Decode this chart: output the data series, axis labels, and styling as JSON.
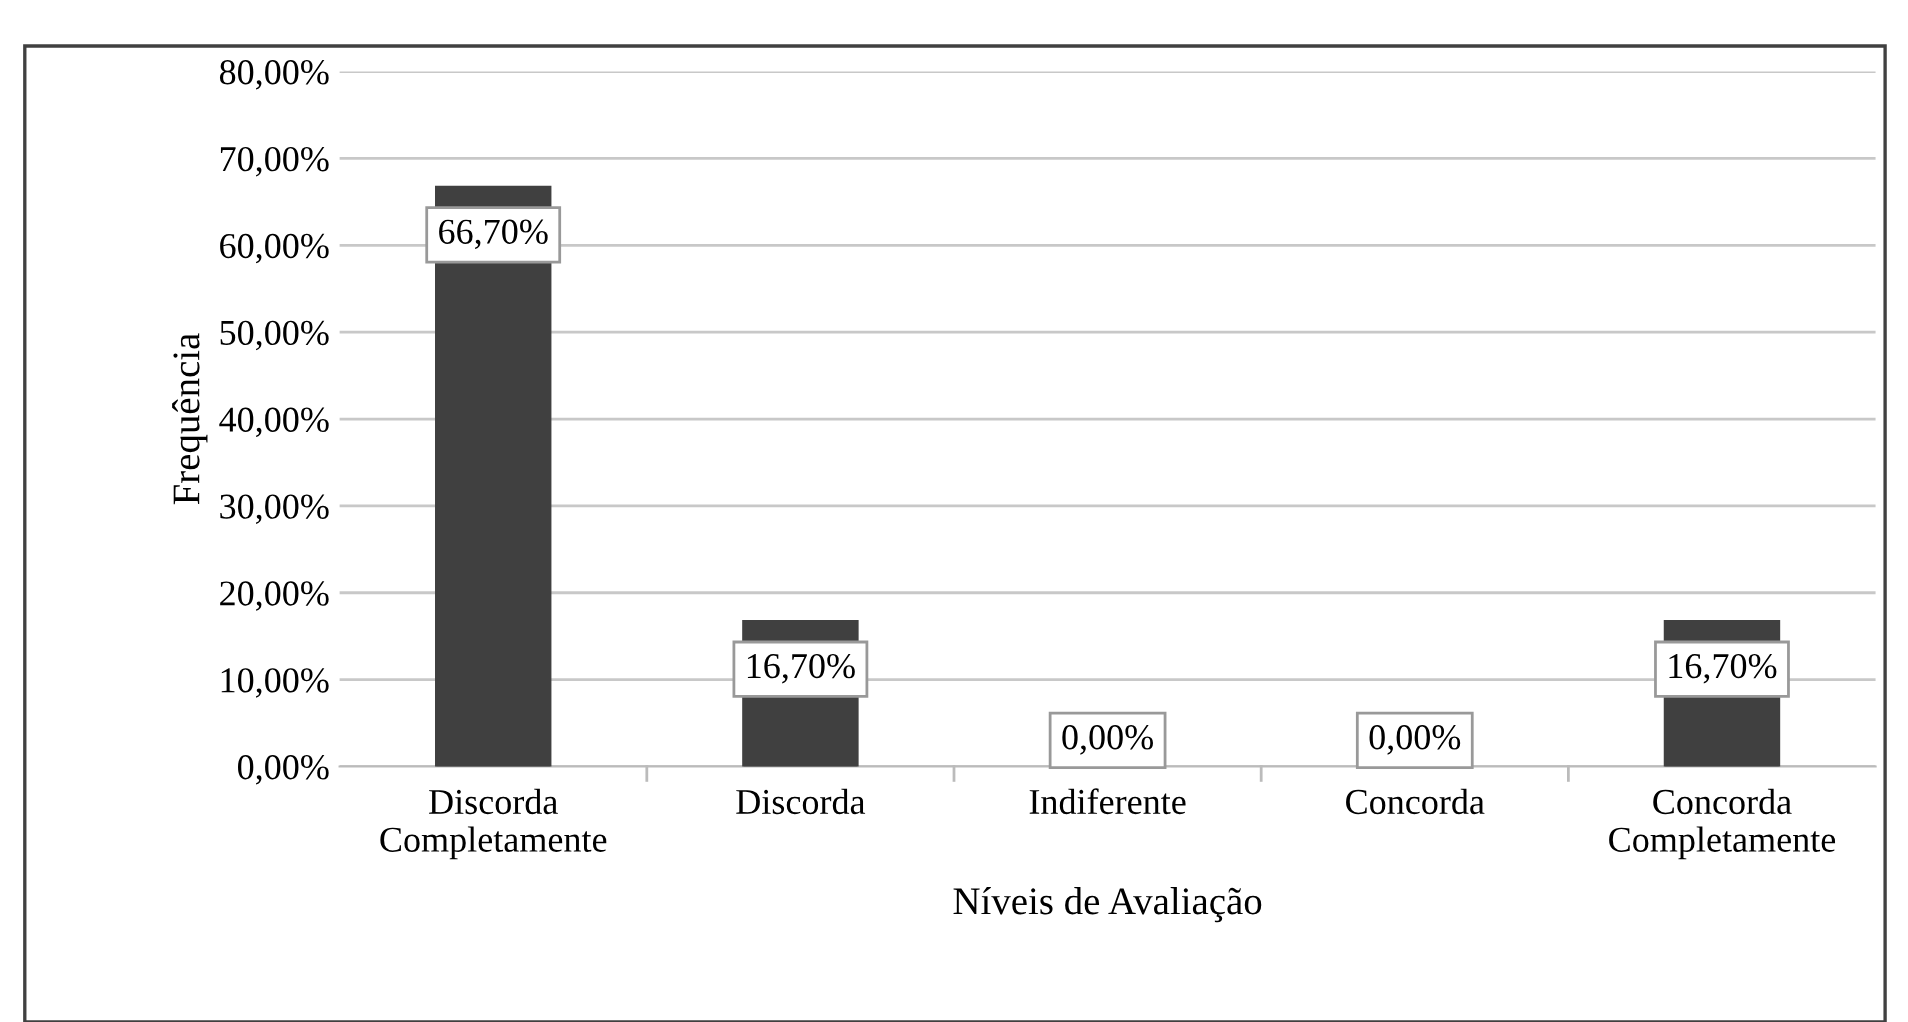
{
  "chart_data": {
    "type": "bar",
    "xlabel": "Níveis de Avaliação",
    "ylabel": "Frequência",
    "categories": [
      "Discorda\nCompletamente",
      "Discorda",
      "Indiferente",
      "Concorda",
      "Concorda\nCompletamente"
    ],
    "values": [
      66.7,
      16.7,
      0,
      0,
      16.7
    ],
    "color": "#404040",
    "value_labels": [
      "66,70%",
      "16,70%",
      "0,00%",
      "0,00%",
      "16,70%"
    ],
    "ylim": [
      0,
      80
    ],
    "yticks": [
      {
        "value": 0,
        "label": "0,00%"
      },
      {
        "value": 10,
        "label": "10,00%"
      },
      {
        "value": 20,
        "label": "20,00%"
      },
      {
        "value": 30,
        "label": "30,00%"
      },
      {
        "value": 40,
        "label": "40,00%"
      },
      {
        "value": 50,
        "label": "50,00%"
      },
      {
        "value": 60,
        "label": "60,00%"
      },
      {
        "value": 70,
        "label": "70,00%"
      },
      {
        "value": 80,
        "label": "80,00%"
      }
    ],
    "grid": "y",
    "legend": false
  }
}
